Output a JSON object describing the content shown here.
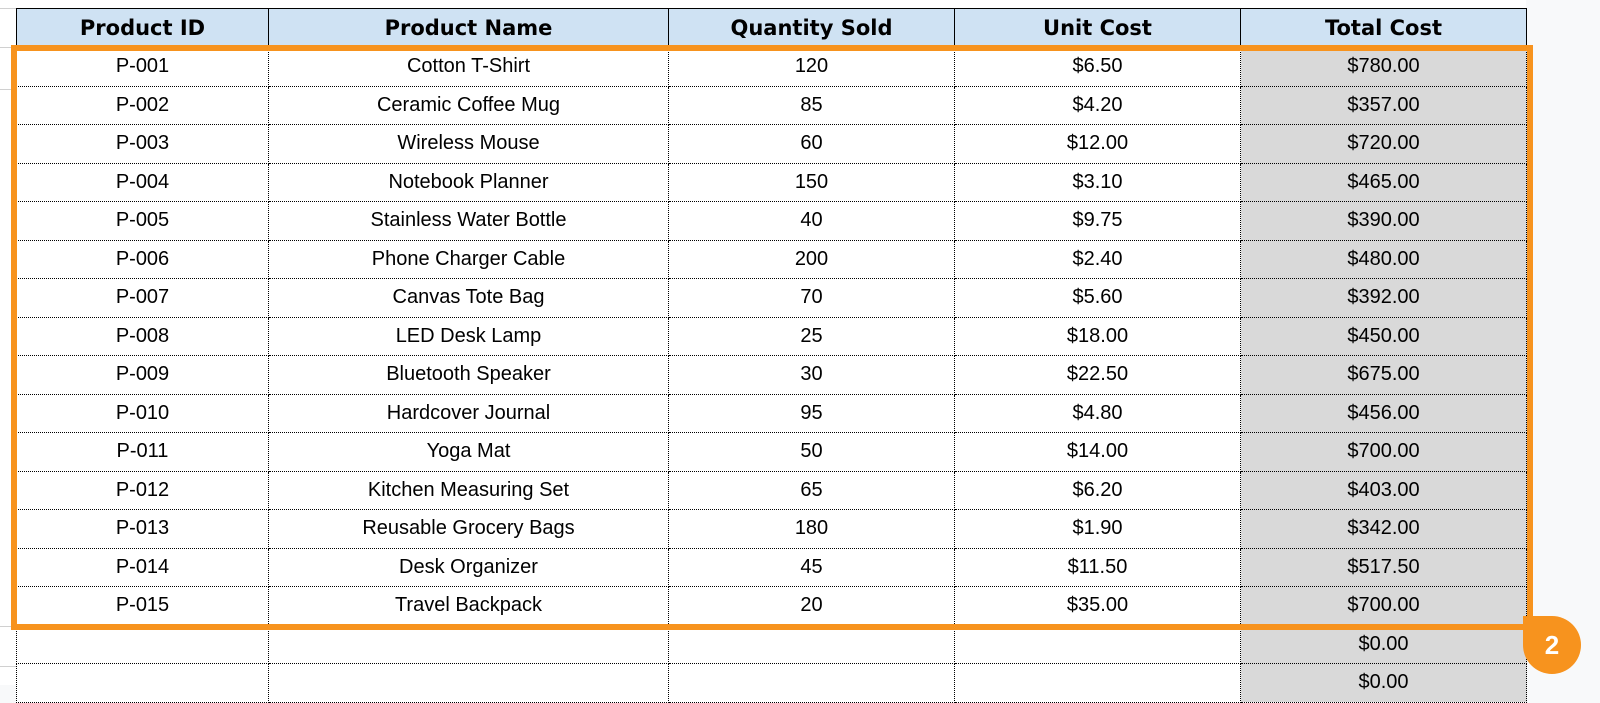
{
  "table": {
    "headers": [
      "Product ID",
      "Product Name",
      "Quantity Sold",
      "Unit Cost",
      "Total Cost"
    ],
    "rows": [
      [
        "P-001",
        "Cotton T-Shirt",
        "120",
        "$6.50",
        "$780.00"
      ],
      [
        "P-002",
        "Ceramic Coffee Mug",
        "85",
        "$4.20",
        "$357.00"
      ],
      [
        "P-003",
        "Wireless Mouse",
        "60",
        "$12.00",
        "$720.00"
      ],
      [
        "P-004",
        "Notebook Planner",
        "150",
        "$3.10",
        "$465.00"
      ],
      [
        "P-005",
        "Stainless Water Bottle",
        "40",
        "$9.75",
        "$390.00"
      ],
      [
        "P-006",
        "Phone Charger Cable",
        "200",
        "$2.40",
        "$480.00"
      ],
      [
        "P-007",
        "Canvas Tote Bag",
        "70",
        "$5.60",
        "$392.00"
      ],
      [
        "P-008",
        "LED Desk Lamp",
        "25",
        "$18.00",
        "$450.00"
      ],
      [
        "P-009",
        "Bluetooth Speaker",
        "30",
        "$22.50",
        "$675.00"
      ],
      [
        "P-010",
        "Hardcover Journal",
        "95",
        "$4.80",
        "$456.00"
      ],
      [
        "P-011",
        "Yoga Mat",
        "50",
        "$14.00",
        "$700.00"
      ],
      [
        "P-012",
        "Kitchen Measuring Set",
        "65",
        "$6.20",
        "$403.00"
      ],
      [
        "P-013",
        "Reusable Grocery Bags",
        "180",
        "$1.90",
        "$342.00"
      ],
      [
        "P-014",
        "Desk Organizer",
        "45",
        "$11.50",
        "$517.50"
      ],
      [
        "P-015",
        "Travel Backpack",
        "20",
        "$35.00",
        "$700.00"
      ],
      [
        "",
        "",
        "",
        "",
        "$0.00"
      ],
      [
        "",
        "",
        "",
        "",
        "$0.00"
      ]
    ]
  },
  "selection": {
    "badge_label": "2",
    "color": "#f7931e"
  },
  "colors": {
    "header_bg": "#cfe2f3",
    "total_col_bg": "#d9d9d9"
  }
}
